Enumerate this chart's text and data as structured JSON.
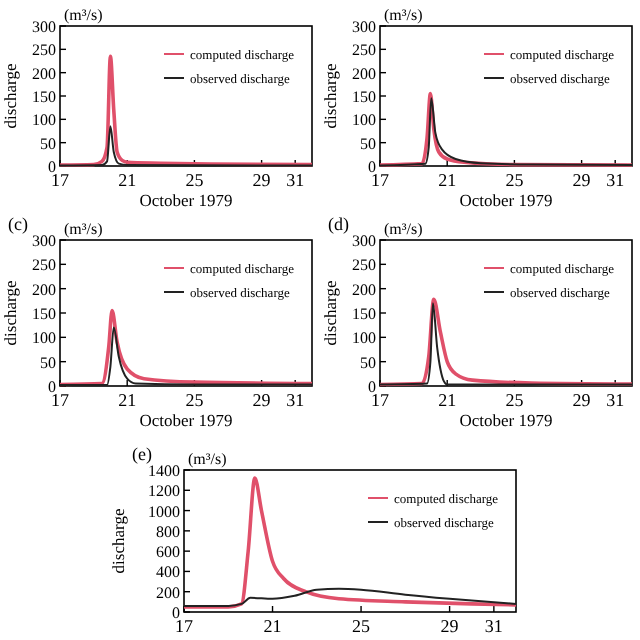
{
  "chart_data": [
    {
      "type": "line",
      "xlabel": "October 1979",
      "ylabel": "discharge",
      "annotations": [
        "(m³/s)"
      ],
      "xlim": [
        17,
        32
      ],
      "xticks": [
        17,
        21,
        25,
        29,
        31
      ],
      "ylim": [
        0,
        300
      ],
      "yticks": [
        0,
        50,
        100,
        150,
        200,
        250,
        300
      ],
      "legend": "top right",
      "series": [
        {
          "name": "computed discharge",
          "color": "#e0506a",
          "x": [
            17,
            19,
            19.5,
            19.8,
            20.0,
            20.2,
            20.4,
            20.7,
            21,
            23,
            26,
            32
          ],
          "values": [
            2,
            3,
            10,
            40,
            235,
            120,
            30,
            12,
            8,
            6,
            4,
            3
          ]
        },
        {
          "name": "observed discharge",
          "color": "#222222",
          "x": [
            17,
            19.5,
            19.8,
            20.0,
            20.2,
            20.5,
            21,
            32
          ],
          "values": [
            1,
            2,
            10,
            85,
            30,
            5,
            2,
            1
          ]
        }
      ]
    },
    {
      "type": "line",
      "xlabel": "October 1979",
      "ylabel": "discharge",
      "annotations": [
        "(m³/s)"
      ],
      "xlim": [
        17,
        32
      ],
      "xticks": [
        17,
        21,
        25,
        29,
        31
      ],
      "ylim": [
        0,
        300
      ],
      "yticks": [
        0,
        50,
        100,
        150,
        200,
        250,
        300
      ],
      "legend": "top right",
      "series": [
        {
          "name": "computed discharge",
          "color": "#e0506a",
          "x": [
            17,
            19.5,
            19.8,
            20.0,
            20.2,
            20.5,
            21,
            22,
            25,
            32
          ],
          "values": [
            2,
            5,
            60,
            155,
            80,
            30,
            15,
            8,
            3,
            2
          ]
        },
        {
          "name": "observed discharge",
          "color": "#222222",
          "x": [
            17,
            19.7,
            19.9,
            20.05,
            20.3,
            20.7,
            21.5,
            23,
            26,
            32
          ],
          "values": [
            1,
            5,
            40,
            145,
            70,
            35,
            15,
            6,
            3,
            2
          ]
        }
      ]
    },
    {
      "type": "line",
      "title": "(c)",
      "xlabel": "October 1979",
      "ylabel": "discharge",
      "annotations": [
        "(m³/s)"
      ],
      "xlim": [
        17,
        32
      ],
      "xticks": [
        17,
        21,
        25,
        29,
        31
      ],
      "ylim": [
        0,
        300
      ],
      "yticks": [
        0,
        50,
        100,
        150,
        200,
        250,
        300
      ],
      "legend": "top right",
      "series": [
        {
          "name": "computed discharge",
          "color": "#e0506a",
          "x": [
            17,
            19.5,
            19.9,
            20.1,
            20.4,
            21,
            22,
            25,
            32
          ],
          "values": [
            3,
            5,
            80,
            155,
            90,
            35,
            15,
            8,
            5
          ]
        },
        {
          "name": "observed discharge",
          "color": "#222222",
          "x": [
            17,
            19.8,
            20.0,
            20.2,
            20.5,
            21,
            21.5,
            25,
            32
          ],
          "values": [
            2,
            2,
            40,
            120,
            60,
            15,
            5,
            3,
            3
          ]
        }
      ]
    },
    {
      "type": "line",
      "title": "(d)",
      "xlabel": "October 1979",
      "ylabel": "discharge",
      "annotations": [
        "(m³/s)"
      ],
      "xlim": [
        17,
        32
      ],
      "xticks": [
        17,
        21,
        25,
        29,
        31
      ],
      "ylim": [
        0,
        300
      ],
      "yticks": [
        0,
        50,
        100,
        150,
        200,
        250,
        300
      ],
      "legend": "top right",
      "series": [
        {
          "name": "computed discharge",
          "color": "#e0506a",
          "x": [
            17,
            19.5,
            19.9,
            20.2,
            20.6,
            21,
            21.5,
            22.5,
            26,
            32
          ],
          "values": [
            3,
            5,
            60,
            178,
            110,
            50,
            25,
            12,
            6,
            4
          ]
        },
        {
          "name": "observed discharge",
          "color": "#222222",
          "x": [
            17,
            19.8,
            20.0,
            20.15,
            20.4,
            20.8,
            21,
            26,
            32
          ],
          "values": [
            3,
            5,
            50,
            170,
            80,
            10,
            3,
            3,
            3
          ]
        }
      ]
    },
    {
      "type": "line",
      "title": "(e)",
      "ylabel": "discharge",
      "annotations": [
        "(m³/s)"
      ],
      "xlim": [
        17,
        32
      ],
      "xticks": [
        17,
        21,
        25,
        29,
        31
      ],
      "ylim": [
        0,
        1400
      ],
      "yticks": [
        0,
        200,
        400,
        600,
        800,
        1000,
        1200,
        1400
      ],
      "legend": "top right",
      "series": [
        {
          "name": "computed discharge",
          "color": "#e0506a",
          "x": [
            17,
            19,
            19.6,
            19.9,
            20.2,
            20.5,
            21,
            21.5,
            22.5,
            24,
            27,
            30,
            32
          ],
          "values": [
            50,
            50,
            80,
            600,
            1320,
            1000,
            500,
            330,
            200,
            130,
            100,
            80,
            70
          ]
        },
        {
          "name": "observed discharge",
          "color": "#222222",
          "x": [
            17,
            19,
            19.6,
            20,
            21,
            22,
            23,
            24,
            25,
            27,
            29,
            32
          ],
          "values": [
            60,
            60,
            80,
            140,
            130,
            160,
            220,
            230,
            220,
            170,
            130,
            80
          ]
        }
      ]
    }
  ]
}
